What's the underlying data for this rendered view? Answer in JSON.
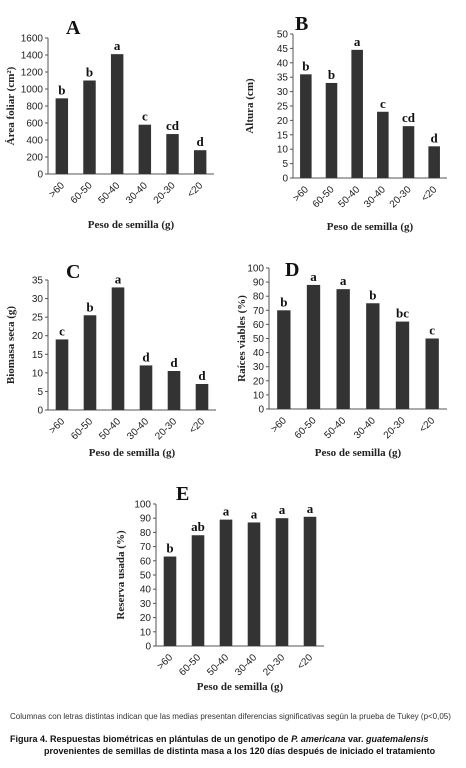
{
  "chart_data": [
    {
      "panel": "A",
      "type": "bar",
      "categories": [
        ">60",
        "60-50",
        "50-40",
        "30-40",
        "20-30",
        "<20"
      ],
      "values": [
        890,
        1100,
        1410,
        580,
        470,
        280
      ],
      "labels": [
        "b",
        "b",
        "a",
        "c",
        "cd",
        "d"
      ],
      "ylabel": "Área foliar (cm²)",
      "xlabel": "Peso de semilla (g)",
      "ylim": [
        0,
        1600
      ],
      "yticks": [
        0,
        200,
        400,
        600,
        800,
        1000,
        1200,
        1400,
        1600
      ],
      "grid": false
    },
    {
      "panel": "B",
      "type": "bar",
      "categories": [
        ">60",
        "60-50",
        "50-40",
        "30-40",
        "20-30",
        "<20"
      ],
      "values": [
        36,
        33,
        44.5,
        23,
        18,
        11
      ],
      "labels": [
        "b",
        "b",
        "a",
        "c",
        "cd",
        "d"
      ],
      "ylabel": "Altura (cm)",
      "xlabel": "Peso de semilla (g)",
      "ylim": [
        0,
        50
      ],
      "yticks": [
        0,
        5,
        10,
        15,
        20,
        25,
        30,
        35,
        40,
        45,
        50
      ],
      "grid": false
    },
    {
      "panel": "C",
      "type": "bar",
      "categories": [
        ">60",
        "60-50",
        "50-40",
        "30-40",
        "20-30",
        "<20"
      ],
      "values": [
        19,
        25.5,
        33,
        12,
        10.5,
        7
      ],
      "labels": [
        "c",
        "b",
        "a",
        "d",
        "d",
        "d"
      ],
      "ylabel": "Biomasa seca (g)",
      "xlabel": "Peso de semilla (g)",
      "ylim": [
        0,
        35
      ],
      "yticks": [
        0,
        5,
        10,
        15,
        20,
        25,
        30,
        35
      ],
      "grid": false
    },
    {
      "panel": "D",
      "type": "bar",
      "categories": [
        ">60",
        "60-50",
        "50-40",
        "30-40",
        "20-30",
        "<20"
      ],
      "values": [
        70,
        88,
        85,
        75,
        62,
        50
      ],
      "labels": [
        "b",
        "a",
        "a",
        "b",
        "bc",
        "c"
      ],
      "ylabel": "Raíces viables (%)",
      "xlabel": "Peso de semilla (g)",
      "ylim": [
        0,
        100
      ],
      "yticks": [
        0,
        10,
        20,
        30,
        40,
        50,
        60,
        70,
        80,
        90,
        100
      ],
      "grid": false
    },
    {
      "panel": "E",
      "type": "bar",
      "categories": [
        ">60",
        "60-50",
        "50-40",
        "30-40",
        "20-30",
        "<20"
      ],
      "values": [
        63,
        78,
        89,
        87,
        90,
        91
      ],
      "labels": [
        "b",
        "ab",
        "a",
        "a",
        "a",
        "a"
      ],
      "ylabel": "Reserva usada (%)",
      "xlabel": "Peso de semilla (g)",
      "ylim": [
        0,
        100
      ],
      "yticks": [
        0,
        10,
        20,
        30,
        40,
        50,
        60,
        70,
        80,
        90,
        100
      ],
      "grid": false
    }
  ],
  "footnote": "Columnas con letras distintas indican que las medias presentan diferencias significativas según la prueba de Tukey (p<0,05)",
  "caption": {
    "line1_pre": "Figura 4. Respuestas biométricas en plántulas de un genotipo de ",
    "line1_species": "P. americana",
    "line1_mid": " var. ",
    "line1_variety": "guatemalensis",
    "line2": "provenientes de semillas de distinta masa a los 120 días después de iniciado el tratamiento"
  },
  "colors": {
    "bar": "#333333",
    "axis": "#555555"
  }
}
